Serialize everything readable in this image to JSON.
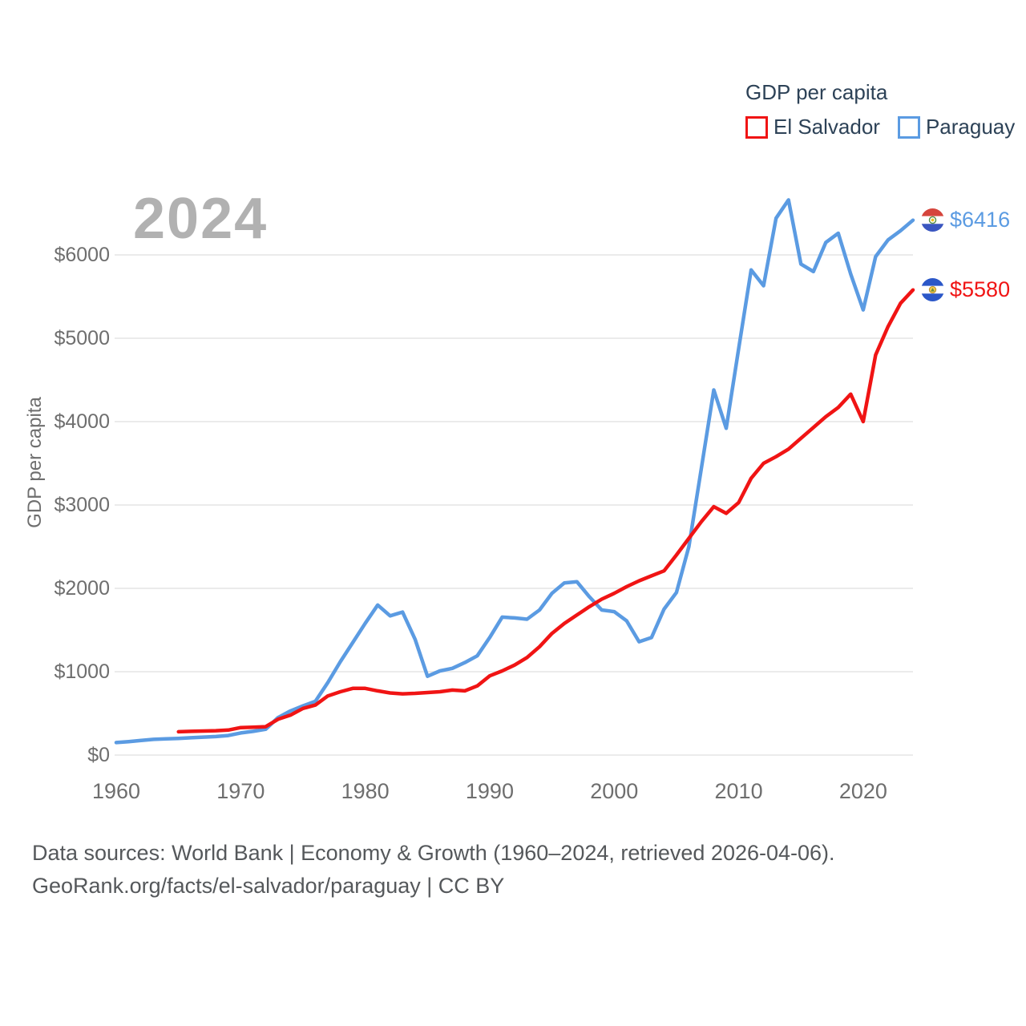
{
  "watermark": "2024",
  "legend": {
    "title": "GDP per capita",
    "items": [
      {
        "label": "El Salvador",
        "color": "#f01414"
      },
      {
        "label": "Paraguay",
        "color": "#5b9be2"
      }
    ]
  },
  "end_labels": [
    {
      "series": "Paraguay",
      "value_label": "$6416",
      "color": "#5b9be2",
      "flag": "paraguay-flag"
    },
    {
      "series": "El Salvador",
      "value_label": "$5580",
      "color": "#f01414",
      "flag": "el-salvador-flag"
    }
  ],
  "footer": {
    "line1": "Data sources: World Bank | Economy & Growth (1960–2024, retrieved 2026-04-06).",
    "line2": "GeoRank.org/facts/el-salvador/paraguay | CC BY"
  },
  "chart_data": {
    "type": "line",
    "title": "GDP per capita",
    "xlabel": "",
    "ylabel": "GDP per capita",
    "xlim": [
      1960,
      2024
    ],
    "ylim": [
      0,
      6000
    ],
    "grid": "horizontal",
    "legend_position": "top-right",
    "x_ticks": [
      1960,
      1970,
      1980,
      1990,
      2000,
      2010,
      2020
    ],
    "x_tick_labels": [
      "1960",
      "1970",
      "1980",
      "1990",
      "2000",
      "2010",
      "2020"
    ],
    "y_ticks": [
      0,
      1000,
      2000,
      3000,
      4000,
      5000,
      6000
    ],
    "y_tick_labels": [
      "$0",
      "$1000",
      "$2000",
      "$3000",
      "$4000",
      "$5000",
      "$6000"
    ],
    "series": [
      {
        "name": "Paraguay",
        "color": "#5b9be2",
        "end_value": 6416,
        "points": [
          [
            1960,
            150
          ],
          [
            1961,
            162
          ],
          [
            1962,
            175
          ],
          [
            1963,
            188
          ],
          [
            1964,
            195
          ],
          [
            1965,
            200
          ],
          [
            1966,
            208
          ],
          [
            1967,
            215
          ],
          [
            1968,
            222
          ],
          [
            1969,
            235
          ],
          [
            1970,
            265
          ],
          [
            1971,
            285
          ],
          [
            1972,
            310
          ],
          [
            1973,
            450
          ],
          [
            1974,
            530
          ],
          [
            1975,
            590
          ],
          [
            1976,
            645
          ],
          [
            1977,
            870
          ],
          [
            1978,
            1120
          ],
          [
            1979,
            1350
          ],
          [
            1980,
            1580
          ],
          [
            1981,
            1800
          ],
          [
            1982,
            1670
          ],
          [
            1983,
            1715
          ],
          [
            1984,
            1390
          ],
          [
            1985,
            945
          ],
          [
            1986,
            1010
          ],
          [
            1987,
            1040
          ],
          [
            1988,
            1110
          ],
          [
            1989,
            1190
          ],
          [
            1990,
            1410
          ],
          [
            1991,
            1655
          ],
          [
            1992,
            1645
          ],
          [
            1993,
            1630
          ],
          [
            1994,
            1740
          ],
          [
            1995,
            1940
          ],
          [
            1996,
            2065
          ],
          [
            1997,
            2080
          ],
          [
            1998,
            1900
          ],
          [
            1999,
            1740
          ],
          [
            2000,
            1720
          ],
          [
            2001,
            1610
          ],
          [
            2002,
            1360
          ],
          [
            2003,
            1410
          ],
          [
            2004,
            1750
          ],
          [
            2005,
            1950
          ],
          [
            2006,
            2500
          ],
          [
            2007,
            3440
          ],
          [
            2008,
            4380
          ],
          [
            2009,
            3920
          ],
          [
            2010,
            4880
          ],
          [
            2011,
            5820
          ],
          [
            2012,
            5630
          ],
          [
            2013,
            6440
          ],
          [
            2014,
            6660
          ],
          [
            2015,
            5890
          ],
          [
            2016,
            5800
          ],
          [
            2017,
            6150
          ],
          [
            2018,
            6260
          ],
          [
            2019,
            5770
          ],
          [
            2020,
            5340
          ],
          [
            2021,
            5980
          ],
          [
            2022,
            6180
          ],
          [
            2023,
            6290
          ],
          [
            2024,
            6416
          ]
        ]
      },
      {
        "name": "El Salvador",
        "color": "#f01414",
        "end_value": 5580,
        "points": [
          [
            1965,
            280
          ],
          [
            1966,
            285
          ],
          [
            1967,
            288
          ],
          [
            1968,
            292
          ],
          [
            1969,
            300
          ],
          [
            1970,
            330
          ],
          [
            1971,
            335
          ],
          [
            1972,
            340
          ],
          [
            1973,
            430
          ],
          [
            1974,
            480
          ],
          [
            1975,
            560
          ],
          [
            1976,
            600
          ],
          [
            1977,
            710
          ],
          [
            1978,
            760
          ],
          [
            1979,
            800
          ],
          [
            1980,
            800
          ],
          [
            1981,
            770
          ],
          [
            1982,
            745
          ],
          [
            1983,
            735
          ],
          [
            1984,
            740
          ],
          [
            1985,
            750
          ],
          [
            1986,
            760
          ],
          [
            1987,
            780
          ],
          [
            1988,
            770
          ],
          [
            1989,
            830
          ],
          [
            1990,
            950
          ],
          [
            1991,
            1010
          ],
          [
            1992,
            1080
          ],
          [
            1993,
            1170
          ],
          [
            1994,
            1300
          ],
          [
            1995,
            1460
          ],
          [
            1996,
            1580
          ],
          [
            1997,
            1680
          ],
          [
            1998,
            1780
          ],
          [
            1999,
            1870
          ],
          [
            2000,
            1940
          ],
          [
            2001,
            2020
          ],
          [
            2002,
            2090
          ],
          [
            2003,
            2150
          ],
          [
            2004,
            2210
          ],
          [
            2005,
            2400
          ],
          [
            2006,
            2600
          ],
          [
            2007,
            2800
          ],
          [
            2008,
            2980
          ],
          [
            2009,
            2900
          ],
          [
            2010,
            3030
          ],
          [
            2011,
            3320
          ],
          [
            2012,
            3500
          ],
          [
            2013,
            3580
          ],
          [
            2014,
            3670
          ],
          [
            2015,
            3800
          ],
          [
            2016,
            3930
          ],
          [
            2017,
            4060
          ],
          [
            2018,
            4170
          ],
          [
            2019,
            4330
          ],
          [
            2020,
            4000
          ],
          [
            2021,
            4800
          ],
          [
            2022,
            5140
          ],
          [
            2023,
            5420
          ],
          [
            2024,
            5580
          ]
        ]
      }
    ]
  }
}
